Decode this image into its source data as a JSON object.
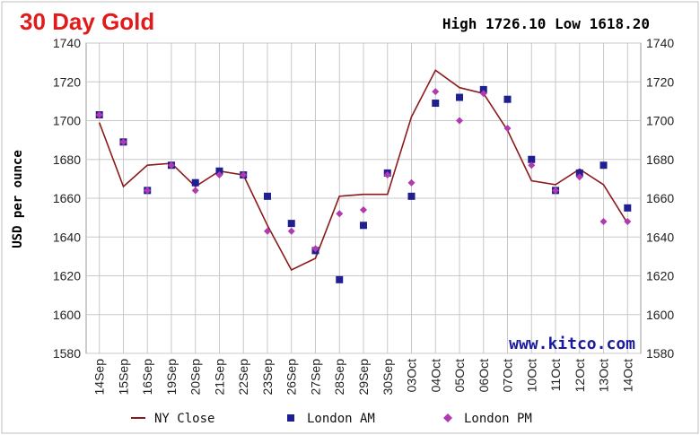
{
  "chart_data": {
    "type": "line",
    "title": "30 Day Gold",
    "stats": "High 1726.10 Low 1618.20",
    "watermark": "www.kitco.com",
    "ylabel": "USD per ounce",
    "ylim": [
      1580,
      1740
    ],
    "yticks": [
      1580,
      1600,
      1620,
      1640,
      1660,
      1680,
      1700,
      1720,
      1740
    ],
    "grid": true,
    "legend_position": "bottom",
    "categories": [
      "14Sep",
      "15Sep",
      "16Sep",
      "19Sep",
      "20Sep",
      "21Sep",
      "22Sep",
      "23Sep",
      "26Sep",
      "27Sep",
      "28Sep",
      "29Sep",
      "30Sep",
      "03Oct",
      "04Oct",
      "05Oct",
      "06Oct",
      "07Oct",
      "10Oct",
      "11Oct",
      "12Oct",
      "13Oct",
      "14Oct"
    ],
    "series": [
      {
        "name": "NY Close",
        "type": "line",
        "color": "#8b1a1a",
        "values": [
          1699,
          1666,
          1677,
          1678,
          1666,
          1674,
          1672,
          1646,
          1623,
          1629,
          1661,
          1662,
          1662,
          1702,
          1726,
          1717,
          1714,
          1695,
          1669,
          1667,
          1675,
          1667,
          1647
        ]
      },
      {
        "name": "London AM",
        "type": "marker",
        "color": "#1f1f8f",
        "values": [
          1703,
          1689,
          1664,
          1677,
          1668,
          1674,
          1672,
          1661,
          1647,
          1633,
          1618,
          1646,
          1673,
          1661,
          1709,
          1712,
          1716,
          1711,
          1680,
          1664,
          1673,
          1677,
          1655
        ]
      },
      {
        "name": "London PM",
        "type": "marker",
        "color": "#b03ab0",
        "values": [
          1703,
          1689,
          1664,
          1677,
          1664,
          1672,
          1672,
          1643,
          1643,
          1634,
          1652,
          1654,
          1672,
          1668,
          1715,
          1700,
          1714,
          1696,
          1677,
          1664,
          1671,
          1648,
          1648
        ]
      }
    ]
  }
}
